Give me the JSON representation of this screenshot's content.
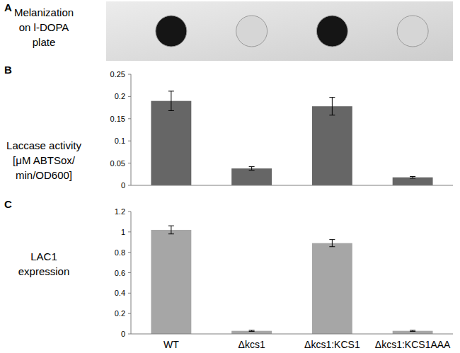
{
  "chart_data": [
    {
      "type": "spot",
      "title": "A",
      "y_label": [
        "Melanization",
        "on l-DOPA",
        "plate"
      ],
      "colors": [
        "#151515",
        "#d6d6d6",
        "#151515",
        "#d6d6d6"
      ]
    },
    {
      "type": "bar",
      "title": "B",
      "y_label": [
        "Laccase activity",
        "[μM ABTSox/",
        "min/OD600]"
      ],
      "values": [
        0.19,
        0.038,
        0.178,
        0.018
      ],
      "errors": [
        0.022,
        0.004,
        0.02,
        0.002
      ],
      "color": "#666666",
      "ylim": [
        0,
        0.25
      ],
      "yticks": [
        0,
        0.05,
        0.1,
        0.15,
        0.2,
        0.25
      ],
      "grid": false
    },
    {
      "type": "bar",
      "title": "C",
      "y_label": [
        "LAC1",
        "expression"
      ],
      "categories": [
        "WT",
        "Δkcs1",
        "Δkcs1:KCS1",
        "Δkcs1:KCS1AAA"
      ],
      "values": [
        1.02,
        0.03,
        0.89,
        0.03
      ],
      "errors": [
        0.04,
        0.005,
        0.035,
        0.005
      ],
      "color": "#a6a6a6",
      "ylim": [
        0,
        1.2
      ],
      "yticks": [
        0,
        0.2,
        0.4,
        0.6,
        0.8,
        1,
        1.2
      ],
      "grid": false
    }
  ]
}
